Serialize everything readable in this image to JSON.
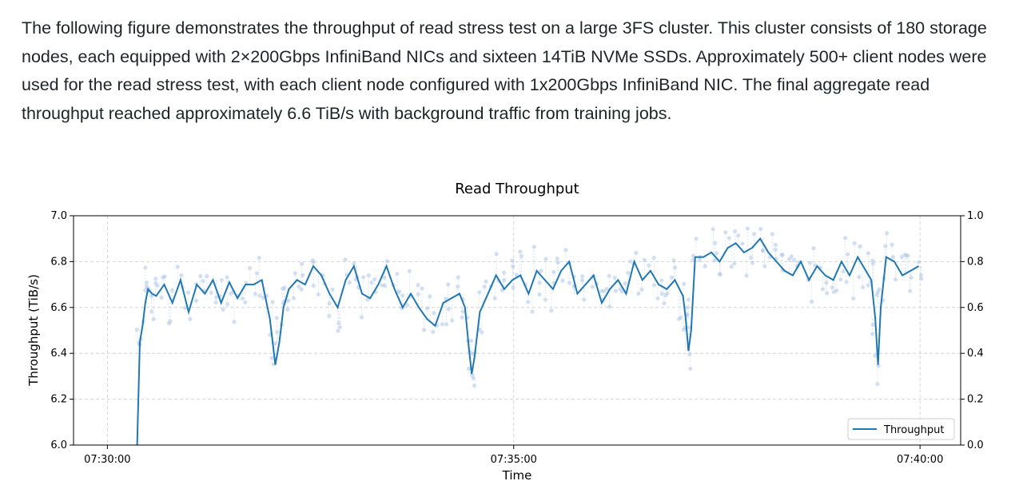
{
  "description": "The following figure demonstrates the throughput of read stress test on a large 3FS cluster. This cluster consists of 180 storage nodes, each equipped with 2×200Gbps InfiniBand NICs and sixteen 14TiB NVMe SSDs. Approximately 500+ client nodes were used for the read stress test, with each client node configured with 1x200Gbps InfiniBand NIC. The final aggregate read throughput reached approximately 6.6 TiB/s with background traffic from training jobs.",
  "colors": {
    "line": "#1f77b4",
    "scatter": "#aec7e8",
    "grid": "#cccccc"
  },
  "chart_data": {
    "type": "line",
    "title": "Read Throughput",
    "xlabel": "Time",
    "ylabel": "Throughput (TiB/s)",
    "xlim": [
      "07:29:35",
      "07:40:30"
    ],
    "ylim": [
      6.0,
      7.0
    ],
    "y2lim": [
      0.0,
      1.0
    ],
    "x_ticks": [
      "07:30:00",
      "07:35:00",
      "07:40:00"
    ],
    "y_ticks": [
      "6.0",
      "6.2",
      "6.4",
      "6.6",
      "6.8",
      "7.0"
    ],
    "y2_ticks": [
      "0.0",
      "0.2",
      "0.4",
      "0.6",
      "0.8",
      "1.0"
    ],
    "grid": true,
    "legend_position": "bottom-right",
    "series": [
      {
        "name": "Throughput",
        "x": [
          "07:30:22",
          "07:30:24",
          "07:30:26",
          "07:30:28",
          "07:30:30",
          "07:30:33",
          "07:30:36",
          "07:30:42",
          "07:30:48",
          "07:30:54",
          "07:31:00",
          "07:31:06",
          "07:31:12",
          "07:31:18",
          "07:31:24",
          "07:31:30",
          "07:31:36",
          "07:31:42",
          "07:31:48",
          "07:31:54",
          "07:32:00",
          "07:32:04",
          "07:32:07",
          "07:32:10",
          "07:32:14",
          "07:32:20",
          "07:32:26",
          "07:32:32",
          "07:32:38",
          "07:32:44",
          "07:32:50",
          "07:32:56",
          "07:33:02",
          "07:33:08",
          "07:33:14",
          "07:33:20",
          "07:33:26",
          "07:33:32",
          "07:33:38",
          "07:33:44",
          "07:33:50",
          "07:33:56",
          "07:34:02",
          "07:34:08",
          "07:34:14",
          "07:34:20",
          "07:34:24",
          "07:34:27",
          "07:34:29",
          "07:34:31",
          "07:34:35",
          "07:34:41",
          "07:34:47",
          "07:34:53",
          "07:34:59",
          "07:35:05",
          "07:35:11",
          "07:35:17",
          "07:35:23",
          "07:35:29",
          "07:35:35",
          "07:35:41",
          "07:35:47",
          "07:35:53",
          "07:35:59",
          "07:36:05",
          "07:36:11",
          "07:36:17",
          "07:36:23",
          "07:36:29",
          "07:36:35",
          "07:36:41",
          "07:36:47",
          "07:36:53",
          "07:36:59",
          "07:37:05",
          "07:37:07",
          "07:37:09",
          "07:37:11",
          "07:37:14",
          "07:37:20",
          "07:37:26",
          "07:37:32",
          "07:37:38",
          "07:37:44",
          "07:37:50",
          "07:37:56",
          "07:38:02",
          "07:38:08",
          "07:38:14",
          "07:38:20",
          "07:38:26",
          "07:38:32",
          "07:38:38",
          "07:38:44",
          "07:38:50",
          "07:38:56",
          "07:39:02",
          "07:39:08",
          "07:39:14",
          "07:39:20",
          "07:39:24",
          "07:39:27",
          "07:39:29",
          "07:39:31",
          "07:39:35",
          "07:39:41",
          "07:39:47",
          "07:39:53",
          "07:39:59"
        ],
        "y": [
          6.0,
          6.45,
          6.52,
          6.62,
          6.68,
          6.66,
          6.65,
          6.7,
          6.62,
          6.72,
          6.58,
          6.7,
          6.66,
          6.72,
          6.62,
          6.71,
          6.64,
          6.7,
          6.7,
          6.72,
          6.55,
          6.35,
          6.45,
          6.6,
          6.68,
          6.72,
          6.7,
          6.78,
          6.74,
          6.66,
          6.6,
          6.72,
          6.78,
          6.66,
          6.64,
          6.7,
          6.78,
          6.68,
          6.6,
          6.66,
          6.6,
          6.55,
          6.52,
          6.62,
          6.64,
          6.66,
          6.6,
          6.42,
          6.31,
          6.38,
          6.58,
          6.66,
          6.74,
          6.68,
          6.72,
          6.74,
          6.66,
          6.76,
          6.72,
          6.68,
          6.76,
          6.8,
          6.66,
          6.7,
          6.74,
          6.62,
          6.68,
          6.72,
          6.66,
          6.8,
          6.72,
          6.76,
          6.7,
          6.68,
          6.72,
          6.65,
          6.55,
          6.41,
          6.5,
          6.82,
          6.82,
          6.84,
          6.8,
          6.86,
          6.88,
          6.84,
          6.86,
          6.9,
          6.84,
          6.8,
          6.76,
          6.74,
          6.8,
          6.72,
          6.78,
          6.74,
          6.72,
          6.8,
          6.74,
          6.82,
          6.76,
          6.72,
          6.55,
          6.35,
          6.6,
          6.82,
          6.8,
          6.74,
          6.76,
          6.78
        ]
      }
    ]
  }
}
